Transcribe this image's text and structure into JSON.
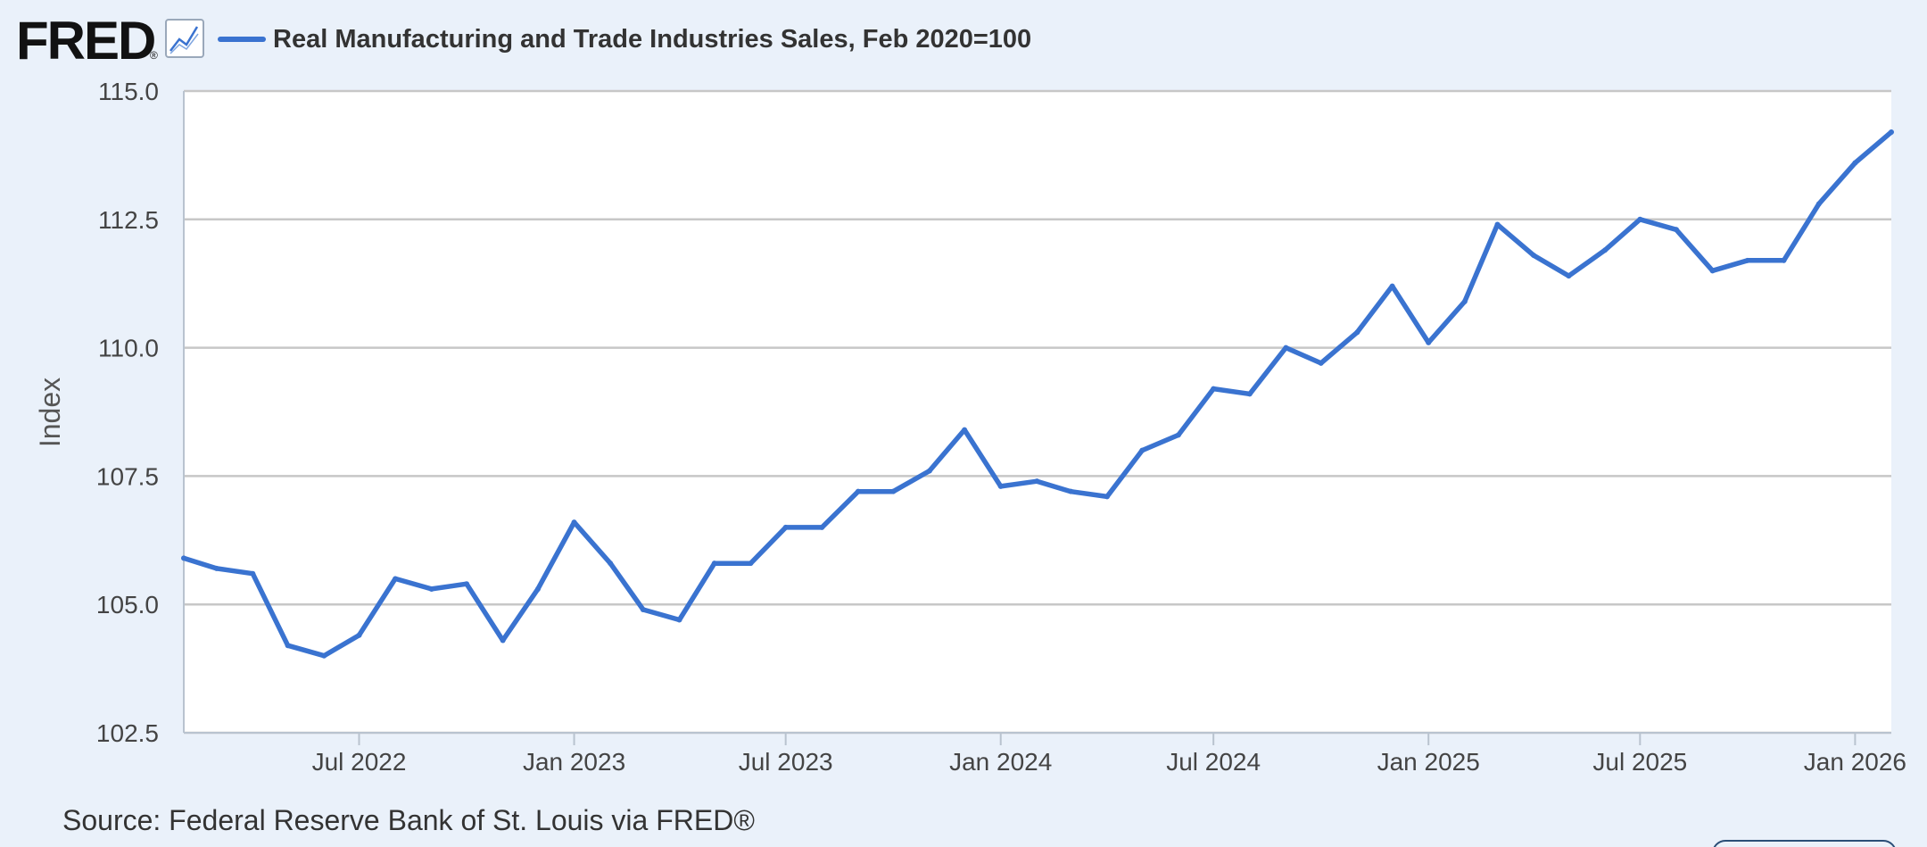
{
  "header": {
    "logo_text": "FRED",
    "logo_mark": "®",
    "icon": "line-chart-icon"
  },
  "colors": {
    "background": "#eaf1fa",
    "plot_background": "#ffffff",
    "series": "#3a73d0",
    "grid": "#c7c7c7",
    "text": "#444444"
  },
  "footer": {
    "source": "Source: Federal Reserve Bank of St. Louis via FRED®"
  },
  "chart_data": {
    "type": "line",
    "title": "",
    "xlabel": "",
    "ylabel": "Index",
    "ylim": [
      102.5,
      115.0
    ],
    "xlim": [
      "2022-02-01",
      "2026-02-01"
    ],
    "y_ticks": [
      "102.5",
      "105.0",
      "107.5",
      "110.0",
      "112.5",
      "115.0"
    ],
    "x_ticks": [
      {
        "date": "2022-07-01",
        "label": "Jul 2022"
      },
      {
        "date": "2023-01-01",
        "label": "Jan 2023"
      },
      {
        "date": "2023-07-01",
        "label": "Jul 2023"
      },
      {
        "date": "2024-01-01",
        "label": "Jan 2024"
      },
      {
        "date": "2024-07-01",
        "label": "Jul 2024"
      },
      {
        "date": "2025-01-01",
        "label": "Jan 2025"
      },
      {
        "date": "2025-07-01",
        "label": "Jul 2025"
      },
      {
        "date": "2026-01-01",
        "label": "Jan 2026"
      }
    ],
    "grid": true,
    "legend_position": "top-left",
    "series": [
      {
        "name": "Real Manufacturing and Trade Industries Sales, Feb 2020=100",
        "x": [
          "2022-02-01",
          "2022-03-01",
          "2022-04-01",
          "2022-05-01",
          "2022-06-01",
          "2022-07-01",
          "2022-08-01",
          "2022-09-01",
          "2022-10-01",
          "2022-11-01",
          "2022-12-01",
          "2023-01-01",
          "2023-02-01",
          "2023-03-01",
          "2023-04-01",
          "2023-05-01",
          "2023-06-01",
          "2023-07-01",
          "2023-08-01",
          "2023-09-01",
          "2023-10-01",
          "2023-11-01",
          "2023-12-01",
          "2024-01-01",
          "2024-02-01",
          "2024-03-01",
          "2024-04-01",
          "2024-05-01",
          "2024-06-01",
          "2024-07-01",
          "2024-08-01",
          "2024-09-01",
          "2024-10-01",
          "2024-11-01",
          "2024-12-01",
          "2025-01-01",
          "2025-02-01",
          "2025-03-01",
          "2025-04-01",
          "2025-05-01",
          "2025-06-01",
          "2025-07-01",
          "2025-08-01",
          "2025-09-01",
          "2025-10-01",
          "2025-11-01",
          "2025-12-01",
          "2026-01-01",
          "2026-02-01"
        ],
        "values": [
          105.9,
          105.7,
          105.6,
          104.2,
          104.0,
          104.4,
          105.5,
          105.3,
          105.4,
          104.3,
          105.3,
          106.6,
          105.8,
          104.9,
          104.7,
          105.8,
          105.8,
          106.5,
          106.5,
          107.2,
          107.2,
          107.6,
          108.4,
          107.3,
          107.4,
          107.2,
          107.1,
          108.0,
          108.3,
          109.2,
          109.1,
          110.0,
          109.7,
          110.3,
          111.2,
          110.1,
          110.9,
          112.4,
          111.8,
          111.4,
          111.9,
          112.5,
          112.3,
          111.5,
          111.7,
          111.7,
          112.8,
          113.6,
          114.2
        ]
      }
    ]
  }
}
